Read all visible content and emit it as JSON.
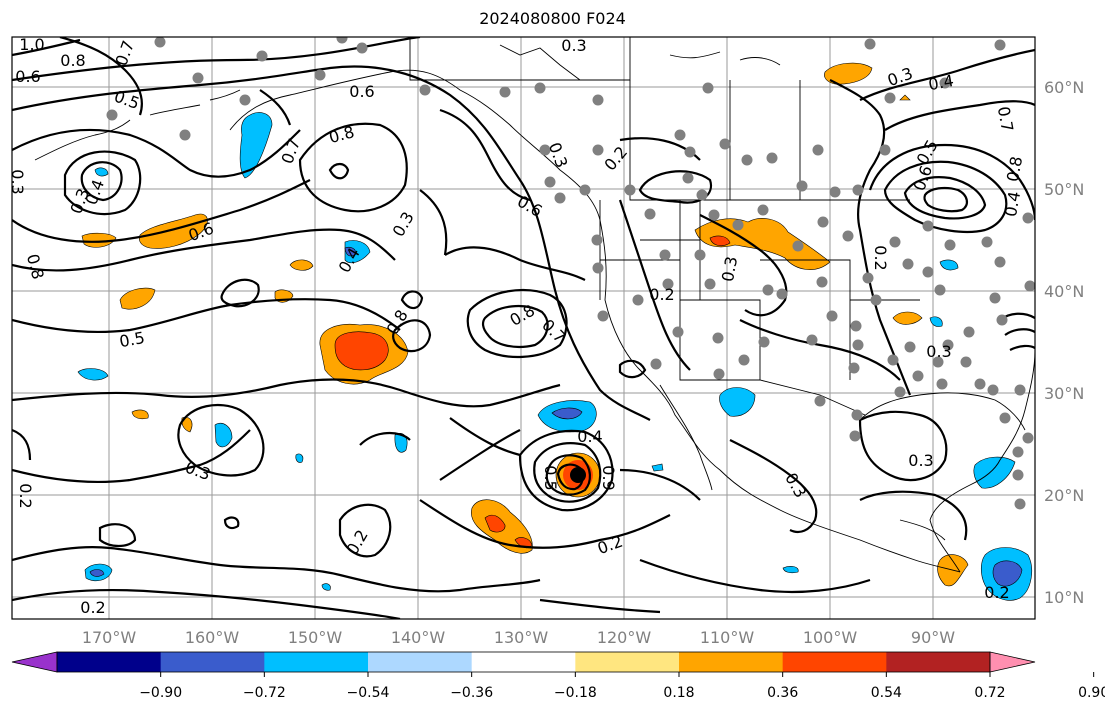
{
  "title": "2024080800 F024",
  "lon_labels": [
    "170°W",
    "160°W",
    "150°W",
    "140°W",
    "130°W",
    "120°W",
    "110°W",
    "100°W",
    "90°W"
  ],
  "lat_labels": [
    "60°N",
    "50°N",
    "40°N",
    "30°N",
    "20°N",
    "10°N"
  ],
  "colorbar": {
    "ticks": [
      "−0.90",
      "−0.72",
      "−0.54",
      "−0.36",
      "−0.18",
      "0.18",
      "0.36",
      "0.54",
      "0.72",
      "0.90"
    ],
    "colors": [
      "#9932cc",
      "#00008b",
      "#3a5ccc",
      "#00bfff",
      "#add8ff",
      "#ffffff",
      "#ffe680",
      "#ffa500",
      "#ff4500",
      "#b22222",
      "#ff8fb0"
    ]
  },
  "contour_labels": [
    {
      "text": "1.0",
      "name": "contour-label-1-0-nw"
    },
    {
      "text": "0.8",
      "name": "contour-label-0-8-nw"
    },
    {
      "text": "0.7",
      "name": "contour-label-0-7-nw"
    },
    {
      "text": "0.6",
      "name": "contour-label-0-6-nw"
    },
    {
      "text": "0.5",
      "name": "contour-label-0-5-aleutian"
    },
    {
      "text": "0.4",
      "name": "contour-label-0-4-west-low"
    },
    {
      "text": "0.3",
      "name": "contour-label-0-3-west-low"
    },
    {
      "text": "0.3",
      "name": "contour-label-0-3-west-edge"
    },
    {
      "text": "0.6",
      "name": "contour-label-0-6-west-edge"
    },
    {
      "text": "0.8",
      "name": "contour-label-0-8-west-mid"
    },
    {
      "text": "0.5",
      "name": "contour-label-0-5-west-mid"
    },
    {
      "text": "0.6",
      "name": "contour-label-0-6-gulf"
    },
    {
      "text": "0.8",
      "name": "contour-label-0-8-gulf"
    },
    {
      "text": "0.7",
      "name": "contour-label-0-7-gulf"
    },
    {
      "text": "0.3",
      "name": "contour-label-0-3-top"
    },
    {
      "text": "0.3",
      "name": "contour-label-0-3-central"
    },
    {
      "text": "0.4",
      "name": "contour-label-0-4-central"
    },
    {
      "text": "0.8",
      "name": "contour-label-0-8-central"
    },
    {
      "text": "0.6",
      "name": "contour-label-0-6-coast"
    },
    {
      "text": "0.8",
      "name": "contour-label-0-8-offshore"
    },
    {
      "text": "0.7",
      "name": "contour-label-0-7-offshore"
    },
    {
      "text": "0.3",
      "name": "contour-label-0-3-bc"
    },
    {
      "text": "0.2",
      "name": "contour-label-0-2-bc"
    },
    {
      "text": "0.2",
      "name": "contour-label-0-2-west-us"
    },
    {
      "text": "0.3",
      "name": "contour-label-0-3-rockies"
    },
    {
      "text": "0.3",
      "name": "contour-label-0-3-canada-east"
    },
    {
      "text": "0.4",
      "name": "contour-label-0-4-canada-east"
    },
    {
      "text": "0.7",
      "name": "contour-label-0-7-east-edge"
    },
    {
      "text": "0.5",
      "name": "contour-label-0-5-east-high"
    },
    {
      "text": "0.6",
      "name": "contour-label-0-6-east-high"
    },
    {
      "text": "0.8",
      "name": "contour-label-0-8-east-edge"
    },
    {
      "text": "0.4",
      "name": "contour-label-0-4-east-edge"
    },
    {
      "text": "0.2",
      "name": "contour-label-0-2-plains"
    },
    {
      "text": "0.3",
      "name": "contour-label-0-3-southeast"
    },
    {
      "text": "0.3",
      "name": "contour-label-0-3-gulf-mexico"
    },
    {
      "text": "0.3",
      "name": "contour-label-0-3-mexico"
    },
    {
      "text": "0.4",
      "name": "contour-label-0-4-hurricane"
    },
    {
      "text": "0.5",
      "name": "contour-label-0-5-hurricane"
    },
    {
      "text": "0.9",
      "name": "contour-label-0-9-hurricane"
    },
    {
      "text": "0.3",
      "name": "contour-label-0-3-tropics-west"
    },
    {
      "text": "0.2",
      "name": "contour-label-0-2-tropics-south"
    },
    {
      "text": "0.2",
      "name": "contour-label-0-2-tropics-east"
    },
    {
      "text": "0.2",
      "name": "contour-label-0-2-caribbean"
    },
    {
      "text": "0.2",
      "name": "contour-label-0-2-bottom-left"
    },
    {
      "text": "0.2",
      "name": "contour-label-0-2-left-edge"
    }
  ]
}
